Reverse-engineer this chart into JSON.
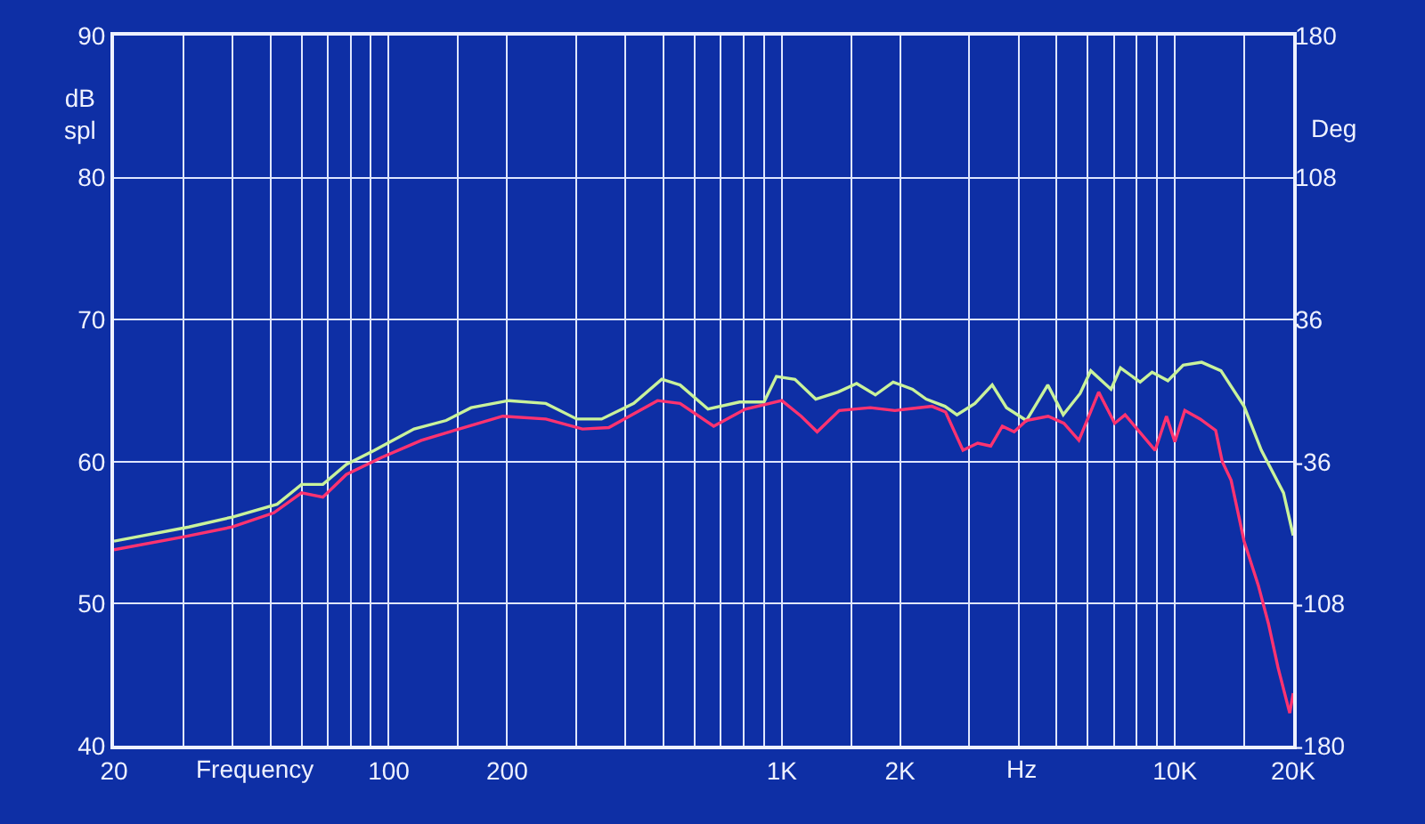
{
  "chart_data": {
    "type": "line",
    "xlabel": "Frequency",
    "ylabel": "dB\nspl",
    "y2label": "Deg",
    "annotations": [
      "Hz"
    ],
    "log": "x",
    "xlim": [
      20,
      20000
    ],
    "xticks": [
      20,
      {
        "value": 30,
        "label": null
      },
      {
        "value": 40,
        "label": null
      },
      {
        "value": 50,
        "label": null
      },
      {
        "value": 60,
        "label": null
      },
      {
        "value": 70,
        "label": null
      },
      {
        "value": 80,
        "label": null
      },
      {
        "value": 90,
        "label": null
      },
      100,
      {
        "value": 150,
        "label": null
      },
      200,
      {
        "value": 300,
        "label": null
      },
      {
        "value": 400,
        "label": null
      },
      {
        "value": 500,
        "label": null
      },
      {
        "value": 600,
        "label": null
      },
      {
        "value": 700,
        "label": null
      },
      {
        "value": 800,
        "label": null
      },
      {
        "value": 900,
        "label": null
      },
      {
        "value": 1000,
        "label": "1K"
      },
      {
        "value": 1500,
        "label": null
      },
      {
        "value": 2000,
        "label": "2K"
      },
      {
        "value": 3000,
        "label": null
      },
      {
        "value": 4000,
        "label": null
      },
      {
        "value": 5000,
        "label": null
      },
      {
        "value": 6000,
        "label": null
      },
      {
        "value": 7000,
        "label": null
      },
      {
        "value": 8000,
        "label": null
      },
      {
        "value": 9000,
        "label": null
      },
      {
        "value": 10000,
        "label": "10K"
      },
      {
        "value": 15000,
        "label": null
      },
      {
        "value": 20000,
        "label": "20K"
      }
    ],
    "ylim": [
      40,
      90
    ],
    "yticks": [
      40,
      50,
      60,
      70,
      80,
      90
    ],
    "y2lim": [
      -180,
      180
    ],
    "y2ticks": [
      -180,
      -108,
      -36,
      36,
      108,
      180
    ],
    "grid": true,
    "series": [
      {
        "color": "#c9f29b",
        "x": [
          20,
          31,
          40,
          52,
          60,
          68,
          78,
          92,
          116,
          140,
          162,
          202,
          251,
          301,
          348,
          420,
          495,
          551,
          649,
          781,
          901,
          969,
          1080,
          1220,
          1390,
          1550,
          1730,
          1920,
          2150,
          2330,
          2600,
          2790,
          3100,
          3430,
          3730,
          4190,
          4750,
          5200,
          5740,
          6110,
          6880,
          7270,
          8160,
          8750,
          9600,
          10500,
          11700,
          13100,
          15000,
          16600,
          18900,
          20000
        ],
        "values": [
          54.4,
          55.4,
          56.1,
          57.0,
          58.4,
          58.4,
          59.8,
          60.8,
          62.3,
          62.9,
          63.8,
          64.3,
          64.1,
          63.0,
          63.0,
          64.1,
          65.8,
          65.4,
          63.7,
          64.2,
          64.2,
          66.0,
          65.8,
          64.4,
          64.9,
          65.5,
          64.7,
          65.6,
          65.1,
          64.4,
          63.9,
          63.3,
          64.1,
          65.4,
          63.8,
          62.9,
          65.4,
          63.3,
          64.8,
          66.4,
          65.1,
          66.6,
          65.6,
          66.3,
          65.7,
          66.8,
          67.0,
          66.4,
          63.9,
          60.8,
          57.8,
          54.8
        ]
      },
      {
        "color": "#ff3370",
        "x": [
          20,
          30,
          40,
          51,
          60,
          68,
          78,
          96,
          121,
          151,
          195,
          251,
          311,
          363,
          483,
          551,
          671,
          807,
          1000,
          1120,
          1230,
          1400,
          1680,
          1940,
          2410,
          2610,
          2890,
          3150,
          3400,
          3640,
          3900,
          4190,
          4760,
          5220,
          5700,
          6400,
          7030,
          7470,
          8910,
          9520,
          10000,
          10600,
          11600,
          12700,
          13200,
          13900,
          15000,
          16300,
          17300,
          18300,
          19600,
          20000
        ],
        "values": [
          53.8,
          54.7,
          55.4,
          56.4,
          57.8,
          57.5,
          59.1,
          60.3,
          61.5,
          62.3,
          63.2,
          63.0,
          62.3,
          62.4,
          64.3,
          64.1,
          62.5,
          63.7,
          64.3,
          63.2,
          62.1,
          63.6,
          63.8,
          63.6,
          63.9,
          63.5,
          60.8,
          61.3,
          61.1,
          62.5,
          62.1,
          62.9,
          63.2,
          62.7,
          61.5,
          64.9,
          62.7,
          63.3,
          60.8,
          63.2,
          61.4,
          63.6,
          63.0,
          62.2,
          60.0,
          58.7,
          54.4,
          51.3,
          48.6,
          45.5,
          42.3,
          43.7
        ]
      }
    ]
  }
}
